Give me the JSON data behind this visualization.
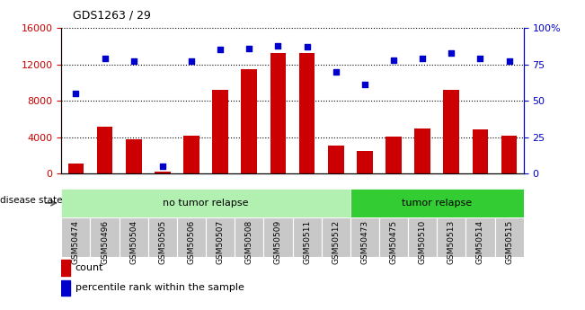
{
  "title": "GDS1263 / 29",
  "categories": [
    "GSM50474",
    "GSM50496",
    "GSM50504",
    "GSM50505",
    "GSM50506",
    "GSM50507",
    "GSM50508",
    "GSM50509",
    "GSM50511",
    "GSM50512",
    "GSM50473",
    "GSM50475",
    "GSM50510",
    "GSM50513",
    "GSM50514",
    "GSM50515"
  ],
  "counts": [
    1100,
    5200,
    3800,
    200,
    4200,
    9200,
    11500,
    13200,
    13200,
    3100,
    2500,
    4100,
    5000,
    9200,
    4900,
    4200
  ],
  "percentiles": [
    55,
    79,
    77,
    5,
    77,
    85,
    86,
    88,
    87,
    70,
    61,
    78,
    79,
    83,
    79,
    77
  ],
  "bar_color": "#cc0000",
  "dot_color": "#0000cc",
  "group1_label": "no tumor relapse",
  "group2_label": "tumor relapse",
  "group1_count": 10,
  "group2_count": 6,
  "disease_state_label": "disease state",
  "legend_count_label": "count",
  "legend_pct_label": "percentile rank within the sample",
  "ylim_left": [
    0,
    16000
  ],
  "ylim_right": [
    0,
    100
  ],
  "yticks_left": [
    0,
    4000,
    8000,
    12000,
    16000
  ],
  "yticks_right": [
    0,
    25,
    50,
    75,
    100
  ],
  "grid_dotted_color": "#000000",
  "bg_xticklabel": "#c8c8c8",
  "group1_color": "#b2f0b2",
  "group2_color": "#33cc33",
  "legend_square_size": 6
}
